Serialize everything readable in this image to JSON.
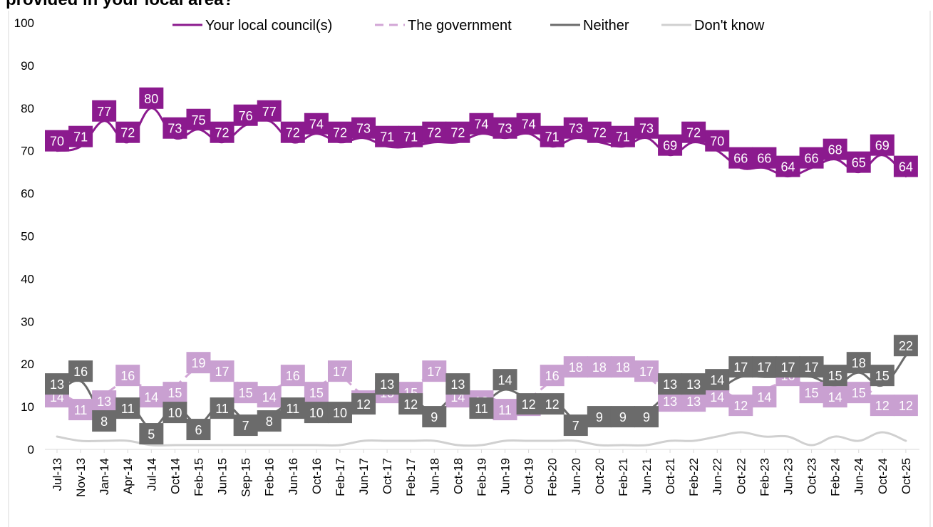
{
  "title": "provided in your local area?",
  "chart_data": {
    "type": "line",
    "title": "provided in your local area?",
    "xlabel": "",
    "ylabel": "",
    "ylim": [
      0,
      100
    ],
    "yticks": [
      0,
      10,
      20,
      30,
      40,
      50,
      60,
      70,
      80,
      90,
      100
    ],
    "grid": false,
    "legend_position": "top",
    "categories": [
      "Jul-13",
      "Nov-13",
      "Jan-14",
      "Apr-14",
      "Jul-14",
      "Oct-14",
      "Feb-15",
      "Jun-15",
      "Sep-15",
      "Feb-16",
      "Jun-16",
      "Oct-16",
      "Feb-17",
      "Jun-17",
      "Oct-17",
      "Feb-17",
      "Jun-18",
      "Oct-18",
      "Feb-19",
      "Jun-19",
      "Oct-19",
      "Feb-20",
      "Jun-20",
      "Oct-20",
      "Feb-21",
      "Jun-21",
      "Oct-21",
      "Feb-22",
      "Jun-22",
      "Oct-22",
      "Feb-23",
      "Jun-23",
      "Oct-23",
      "Feb-24",
      "Jun-24",
      "Oct-24",
      "Oct-25"
    ],
    "series": [
      {
        "name": "Your local council(s)",
        "color": "#8B1A8E",
        "label_color": "#8B1A8E",
        "dash": "solid",
        "values": [
          70,
          71,
          77,
          72,
          80,
          73,
          75,
          72,
          76,
          77,
          72,
          74,
          72,
          73,
          71,
          71,
          72,
          72,
          74,
          73,
          74,
          71,
          73,
          72,
          71,
          73,
          69,
          72,
          70,
          66,
          66,
          64,
          66,
          68,
          65,
          69,
          64
        ]
      },
      {
        "name": "The government",
        "color": "#D2A6D6",
        "label_color": "#C9A0D1",
        "dash": "dashed",
        "values": [
          14,
          11,
          13,
          16,
          14,
          15,
          19,
          17,
          15,
          14,
          16,
          15,
          17,
          13,
          15,
          15,
          17,
          14,
          13,
          11,
          12,
          16,
          18,
          18,
          18,
          17,
          13,
          13,
          14,
          12,
          14,
          16,
          15,
          14,
          15,
          12,
          12
        ]
      },
      {
        "name": "Neither",
        "color": "#6B6B6B",
        "label_color": "#6B6B6B",
        "dash": "solid",
        "values": [
          13,
          16,
          8,
          11,
          5,
          10,
          6,
          11,
          7,
          8,
          11,
          10,
          10,
          12,
          13,
          12,
          9,
          13,
          11,
          14,
          12,
          12,
          7,
          9,
          9,
          9,
          13,
          13,
          14,
          17,
          17,
          17,
          17,
          15,
          18,
          15,
          22
        ]
      },
      {
        "name": "Don't know",
        "color": "#D0D0D0",
        "label_color": null,
        "dash": "solid",
        "values": [
          3,
          2,
          2,
          2,
          1,
          1,
          1,
          1,
          1,
          1,
          1,
          1,
          1,
          2,
          2,
          2,
          2,
          1,
          1,
          2,
          2,
          2,
          2,
          1,
          1,
          1,
          2,
          2,
          3,
          4,
          3,
          3,
          1,
          3,
          2,
          4,
          2
        ]
      }
    ]
  }
}
